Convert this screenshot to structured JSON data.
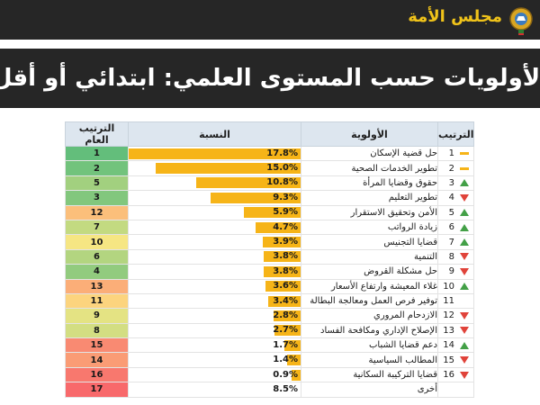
{
  "header": {
    "logo_text": "مجلس الأمة",
    "logo_icon": "kuwait-emblem-icon"
  },
  "title": "الأولويات حسب المستوى العلمي: ابتدائي أو أقل",
  "colors": {
    "bar": "#f6b418",
    "trend_up": "#43a047",
    "trend_down": "#e0433a",
    "trend_same": "#f6b418"
  },
  "table": {
    "headers": {
      "overall": "الترتيب العام",
      "percent": "النسبة",
      "priority": "الأولوية",
      "rank": "الترتيب"
    },
    "rows": [
      {
        "overall": "1",
        "overall_color": "#63be7b",
        "percent": "17.8%",
        "value": 17.8,
        "priority": "حل قضية الإسكان",
        "rank": "1",
        "trend": "same"
      },
      {
        "overall": "2",
        "overall_color": "#72c37c",
        "percent": "15.0%",
        "value": 15.0,
        "priority": "تطوير الخدمات الصحية",
        "rank": "2",
        "trend": "same"
      },
      {
        "overall": "5",
        "overall_color": "#a2d07f",
        "percent": "10.8%",
        "value": 10.8,
        "priority": "حقوق وقضايا المرأة",
        "rank": "3",
        "trend": "up"
      },
      {
        "overall": "3",
        "overall_color": "#82c77d",
        "percent": "9.3%",
        "value": 9.3,
        "priority": "تطوير التعليم",
        "rank": "4",
        "trend": "down"
      },
      {
        "overall": "12",
        "overall_color": "#fbbf7b",
        "percent": "5.9%",
        "value": 5.9,
        "priority": "الأمن وتحقيق الاستقرار",
        "rank": "5",
        "trend": "up"
      },
      {
        "overall": "7",
        "overall_color": "#c3da81",
        "percent": "4.7%",
        "value": 4.7,
        "priority": "زيادة الرواتب",
        "rank": "6",
        "trend": "up"
      },
      {
        "overall": "10",
        "overall_color": "#f6e683",
        "percent": "3.9%",
        "value": 3.9,
        "priority": "قضايا التجنيس",
        "rank": "7",
        "trend": "up"
      },
      {
        "overall": "6",
        "overall_color": "#b3d580",
        "percent": "3.8%",
        "value": 3.8,
        "priority": "التنمية",
        "rank": "8",
        "trend": "down"
      },
      {
        "overall": "4",
        "overall_color": "#92cb7e",
        "percent": "3.8%",
        "value": 3.8,
        "priority": "حل مشكلة القروض",
        "rank": "9",
        "trend": "down"
      },
      {
        "overall": "13",
        "overall_color": "#fbae78",
        "percent": "3.6%",
        "value": 3.6,
        "priority": "غلاء المعيشة وارتفاع الأسعار",
        "rank": "10",
        "trend": "up"
      },
      {
        "overall": "11",
        "overall_color": "#fcd47e",
        "percent": "3.4%",
        "value": 3.4,
        "priority": "توفير فرص العمل ومعالجة البطالة",
        "rank": "11",
        "trend": "none"
      },
      {
        "overall": "9",
        "overall_color": "#e4e383",
        "percent": "2.8%",
        "value": 2.8,
        "priority": "الازدحام المروري",
        "rank": "12",
        "trend": "down"
      },
      {
        "overall": "8",
        "overall_color": "#d3de82",
        "percent": "2.7%",
        "value": 2.7,
        "priority": "الإصلاح الإداري ومكافحة الفساد",
        "rank": "13",
        "trend": "down"
      },
      {
        "overall": "15",
        "overall_color": "#f98a72",
        "percent": "1.7%",
        "value": 1.7,
        "priority": "دعم قضايا الشباب",
        "rank": "14",
        "trend": "up"
      },
      {
        "overall": "14",
        "overall_color": "#fa9c75",
        "percent": "1.4%",
        "value": 1.4,
        "priority": "المطالب السياسية",
        "rank": "15",
        "trend": "down"
      },
      {
        "overall": "16",
        "overall_color": "#f8786e",
        "percent": "0.9%",
        "value": 0.9,
        "priority": "قضايا التركيبة السكانية",
        "rank": "16",
        "trend": "down"
      },
      {
        "overall": "17",
        "overall_color": "#f8696b",
        "percent": "8.5%",
        "value": null,
        "priority": "أخرى",
        "rank": "",
        "trend": "none"
      }
    ]
  }
}
